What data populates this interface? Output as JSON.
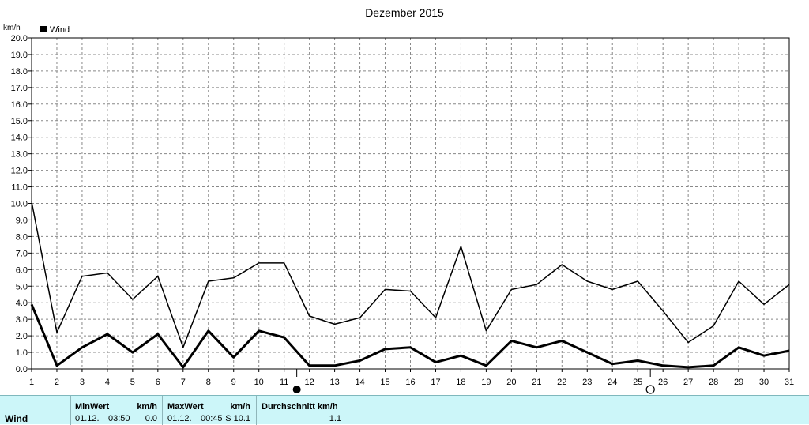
{
  "chart_data": {
    "type": "line",
    "title": "Dezember 2015",
    "ylabel": "km/h",
    "xlabel": "",
    "ylim": [
      0,
      20
    ],
    "y_ticks": [
      "0.0",
      "1.0",
      "2.0",
      "3.0",
      "4.0",
      "5.0",
      "6.0",
      "7.0",
      "8.0",
      "9.0",
      "10.0",
      "11.0",
      "12.0",
      "13.0",
      "14.0",
      "15.0",
      "16.0",
      "17.0",
      "18.0",
      "19.0",
      "20.0"
    ],
    "x_ticks": [
      "1",
      "2",
      "3",
      "4",
      "5",
      "6",
      "7",
      "8",
      "9",
      "10",
      "11",
      "12",
      "13",
      "14",
      "15",
      "16",
      "17",
      "18",
      "19",
      "20",
      "21",
      "22",
      "23",
      "24",
      "25",
      "26",
      "27",
      "28",
      "29",
      "30",
      "31"
    ],
    "x": [
      1,
      2,
      3,
      4,
      5,
      6,
      7,
      8,
      9,
      10,
      11,
      12,
      13,
      14,
      15,
      16,
      17,
      18,
      19,
      20,
      21,
      22,
      23,
      24,
      25,
      26,
      27,
      28,
      29,
      30,
      31
    ],
    "grid": true,
    "legend": {
      "position": "top-left",
      "entries": [
        "Wind"
      ]
    },
    "series": [
      {
        "name": "Wind",
        "role": "max",
        "color": "#000000",
        "values": [
          10.1,
          2.2,
          5.6,
          5.8,
          4.2,
          5.6,
          1.3,
          5.3,
          5.5,
          6.4,
          6.4,
          3.2,
          2.7,
          3.1,
          4.8,
          4.7,
          3.1,
          7.4,
          2.3,
          4.8,
          5.1,
          6.3,
          5.3,
          4.8,
          5.3,
          3.5,
          1.6,
          2.6,
          5.3,
          3.9,
          5.1
        ]
      },
      {
        "name": "",
        "role": "average",
        "color": "#000000",
        "values": [
          3.9,
          0.2,
          1.3,
          2.1,
          1.0,
          2.1,
          0.1,
          2.3,
          0.7,
          2.3,
          1.9,
          0.2,
          0.2,
          0.5,
          1.2,
          1.3,
          0.4,
          0.8,
          0.2,
          1.7,
          1.3,
          1.7,
          1.0,
          0.3,
          0.5,
          0.2,
          0.1,
          0.2,
          1.3,
          0.8,
          1.1
        ]
      }
    ],
    "moon_phases": [
      {
        "x": 11.5,
        "phase": "new-moon"
      },
      {
        "x": 25.5,
        "phase": "full-moon"
      }
    ]
  },
  "stats": {
    "row_label": "Wind",
    "min": {
      "label": "MinWert",
      "unit": "km/h",
      "date": "01.12.",
      "time": "03:50",
      "value": "0.0"
    },
    "max": {
      "label": "MaxWert",
      "unit": "km/h",
      "date": "01.12.",
      "time": "00:45",
      "value": "S 10.1"
    },
    "avg": {
      "label": "Durchschnitt km/h",
      "value": "1.1"
    }
  },
  "colors": {
    "stats_bg": "#ccf6f9",
    "grid": "#888888",
    "line": "#000000"
  }
}
